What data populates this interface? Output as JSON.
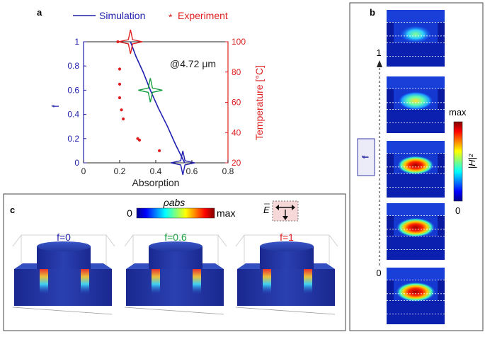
{
  "panel_a": {
    "label": "a",
    "legend": {
      "simulation": "Simulation",
      "experiment_marker": "*",
      "experiment": "Experiment"
    },
    "annotation": "@4.72 μm",
    "colors": {
      "simulation": "#1f1fb0",
      "experiment": "#e02020",
      "mid_star": "#18a040"
    }
  },
  "chart_data": {
    "type": "line",
    "xlabel": "Absorption",
    "ylabel": "f",
    "y2label": "Temperature [°C]",
    "xlim": [
      0,
      0.8
    ],
    "ylim": [
      0,
      1
    ],
    "y2lim": [
      20,
      100
    ],
    "xticks": [
      "0",
      "0.2",
      "0.4",
      "0.6",
      "0.8"
    ],
    "yticks": [
      "0",
      "0.2",
      "0.4",
      "0.6",
      "0.8",
      "1"
    ],
    "y2ticks": [
      "20",
      "40",
      "60",
      "80",
      "100"
    ],
    "series": [
      {
        "name": "Simulation",
        "axis": "left",
        "x": [
          0.56,
          0.51,
          0.465,
          0.415,
          0.37,
          0.33,
          0.29,
          0.26
        ],
        "y": [
          0,
          0.15,
          0.3,
          0.45,
          0.6,
          0.75,
          0.88,
          1.0
        ]
      },
      {
        "name": "Experiment",
        "axis": "right",
        "x": [
          0.42,
          0.31,
          0.3,
          0.22,
          0.21,
          0.2,
          0.2,
          0.2,
          0.19
        ],
        "y": [
          28,
          35,
          36,
          49,
          55,
          63,
          72,
          82,
          100
        ]
      }
    ],
    "markers": [
      {
        "name": "f=0 star",
        "x": 0.55,
        "y": 0.0,
        "color": "#1f1fb0"
      },
      {
        "name": "f=0.6 star",
        "x": 0.37,
        "y": 0.6,
        "color": "#18a040"
      },
      {
        "name": "f=1 star",
        "x": 0.26,
        "y": 1.0,
        "color": "#e02020"
      }
    ]
  },
  "panel_b": {
    "label": "b",
    "axis_label": "f",
    "tick_top": "1",
    "tick_bottom": "0",
    "colorbar_max": "max",
    "colorbar_min": "0",
    "colorbar_symbol": "|H|²",
    "field_intensities": [
      0.55,
      0.7,
      0.85,
      0.95,
      1.0
    ]
  },
  "panel_c": {
    "label": "c",
    "colorbar_title": "ρabs",
    "colorbar_min": "0",
    "colorbar_max": "max",
    "field_symbol": "E",
    "views": [
      {
        "title": "f=0",
        "color": "#1f1fb0"
      },
      {
        "title": "f=0.6",
        "color": "#18a040"
      },
      {
        "title": "f=1",
        "color": "#e02020"
      }
    ]
  }
}
